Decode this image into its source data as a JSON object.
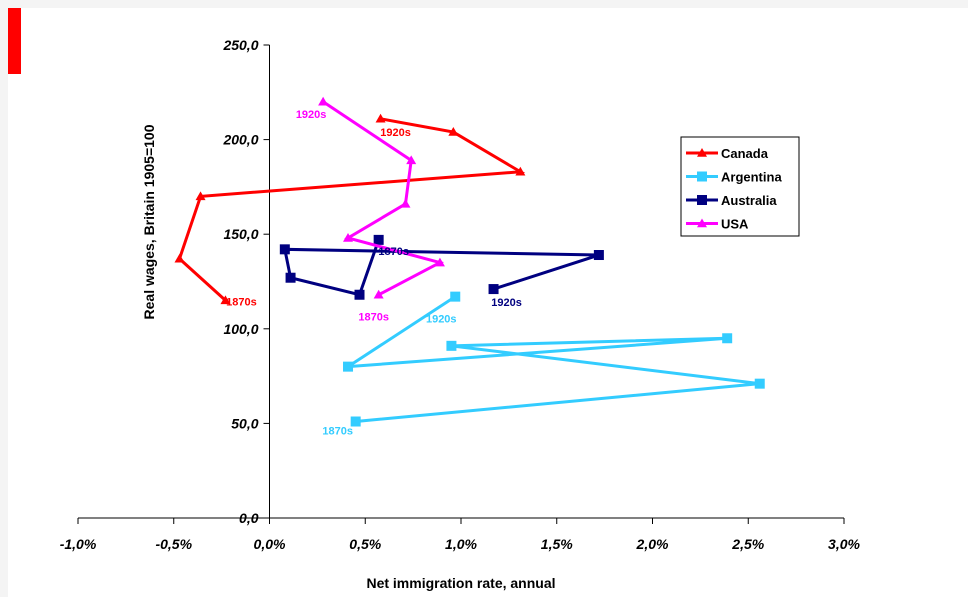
{
  "colors": {
    "background": "#f4f4f4",
    "plot_background": "#ffffff",
    "corner_marker": "#ff0000",
    "axis": "#000000"
  },
  "chart_data": {
    "type": "line",
    "xlabel": "Net immigration rate, annual",
    "ylabel": "Real wages, Britain 1905=100",
    "xlim": [
      -0.01,
      0.03
    ],
    "ylim": [
      0,
      250
    ],
    "xticks": [
      -0.01,
      -0.005,
      0.0,
      0.005,
      0.01,
      0.015,
      0.02,
      0.025,
      0.03
    ],
    "xtick_labels": [
      "-1,0%",
      "-0,5%",
      "0,0%",
      "0,5%",
      "1,0%",
      "1,5%",
      "2,0%",
      "2,5%",
      "3,0%"
    ],
    "yticks": [
      0,
      50,
      100,
      150,
      200,
      250
    ],
    "ytick_labels": [
      "0,0",
      "50,0",
      "100,0",
      "150,0",
      "200,0",
      "250,0"
    ],
    "grid": false,
    "legend_position": "top-right",
    "series": [
      {
        "name": "Canada",
        "color": "#ff0000",
        "marker": "triangle",
        "points": [
          [
            -0.0023,
            115
          ],
          [
            -0.0047,
            137
          ],
          [
            -0.0036,
            170
          ],
          [
            0.0131,
            183
          ],
          [
            0.0096,
            204
          ],
          [
            0.0058,
            211
          ]
        ],
        "point_labels": [
          {
            "index": 0,
            "text": "1870s"
          },
          {
            "index": 5,
            "text": "1920s"
          }
        ]
      },
      {
        "name": "Argentina",
        "color": "#33ccff",
        "marker": "square",
        "points": [
          [
            0.0045,
            51
          ],
          [
            0.0256,
            71
          ],
          [
            0.0095,
            91
          ],
          [
            0.0239,
            95
          ],
          [
            0.0041,
            80
          ],
          [
            0.0097,
            117
          ]
        ],
        "point_labels": [
          {
            "index": 0,
            "text": "1870s"
          },
          {
            "index": 5,
            "text": "1920s"
          }
        ]
      },
      {
        "name": "Australia",
        "color": "#000080",
        "marker": "square",
        "points": [
          [
            0.0057,
            147
          ],
          [
            0.0047,
            118
          ],
          [
            0.0011,
            127
          ],
          [
            0.0008,
            142
          ],
          [
            0.0172,
            139
          ],
          [
            0.0117,
            121
          ]
        ],
        "point_labels": [
          {
            "index": 0,
            "text": "1870s"
          },
          {
            "index": 5,
            "text": "1920s"
          }
        ]
      },
      {
        "name": "USA",
        "color": "#ff00ff",
        "marker": "triangle",
        "points": [
          [
            0.0057,
            118
          ],
          [
            0.0089,
            135
          ],
          [
            0.0041,
            148
          ],
          [
            0.0071,
            166
          ],
          [
            0.0074,
            189
          ],
          [
            0.0028,
            220
          ]
        ],
        "point_labels": [
          {
            "index": 0,
            "text": "1870s"
          },
          {
            "index": 5,
            "text": "1920s"
          }
        ]
      }
    ]
  }
}
